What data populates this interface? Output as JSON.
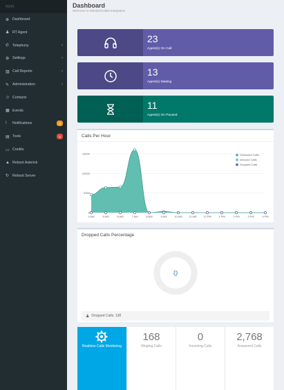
{
  "sidebar": {
    "header_label": "MAIN",
    "items": [
      {
        "icon": "dashboard-icon",
        "label": "Dashboard",
        "glyph": "⊕",
        "caret": false
      },
      {
        "icon": "user-icon",
        "label": "RT Agent",
        "glyph": "♟",
        "caret": false
      },
      {
        "icon": "phone-icon",
        "label": "Telephony",
        "glyph": "✆",
        "caret": true
      },
      {
        "icon": "gear-icon",
        "label": "Settings",
        "glyph": "⚙",
        "caret": true
      },
      {
        "icon": "bar-chart-icon",
        "label": "Call Reports",
        "glyph": "▥",
        "caret": true
      },
      {
        "icon": "wrench-icon",
        "label": "Administration",
        "glyph": "✎",
        "caret": true
      },
      {
        "icon": "contacts-icon",
        "label": "Contacts",
        "glyph": "☺",
        "caret": false
      },
      {
        "icon": "calendar-icon",
        "label": "Events",
        "glyph": "▦",
        "caret": false
      },
      {
        "icon": "exclamation-icon",
        "label": "Notifications",
        "glyph": "!",
        "caret": false,
        "badge": "0",
        "badge_color": "#f39c12"
      },
      {
        "icon": "tools-icon",
        "label": "Tools",
        "glyph": "▤",
        "caret": false,
        "badge": "0",
        "badge_color": "#dd4b39"
      },
      {
        "icon": "credit-card-icon",
        "label": "Credits",
        "glyph": "▭",
        "caret": false
      },
      {
        "icon": "warning-icon",
        "label": "Reboot Asterisk",
        "glyph": "▲",
        "caret": false
      },
      {
        "icon": "refresh-icon",
        "label": "Reboot Server",
        "glyph": "↻",
        "caret": false
      }
    ]
  },
  "header": {
    "title": "Dashboard",
    "subtitle": "Welcome to Elastix/Vicidial Integration"
  },
  "info_boxes": [
    {
      "icon": "headphones-icon",
      "number": "23",
      "label": "Agent(s) On Call",
      "color": "#605ca8"
    },
    {
      "icon": "clock-icon",
      "number": "13",
      "label": "Agent(s) Waiting",
      "color": "#605ca8"
    },
    {
      "icon": "hourglass-icon",
      "number": "11",
      "label": "Agent(s) On Paused",
      "color": "#00786a"
    }
  ],
  "calls_per_hour": {
    "title": "Calls Per Hour",
    "legend": [
      {
        "name": "Outbound Calls",
        "color": "#48b3a4"
      },
      {
        "name": "Inbound Calls",
        "color": "#5bc0de"
      },
      {
        "name": "Dropped Calls",
        "color": "#605ca8"
      }
    ]
  },
  "chart_data": {
    "type": "area",
    "x": [
      "4 AM",
      "5 AM",
      "6 AM",
      "7 AM",
      "8 AM",
      "9 AM",
      "10 AM",
      "11 AM",
      "12 PM",
      "1 PM",
      "2 PM",
      "3 PM",
      "4 PM"
    ],
    "ylim": [
      0,
      15000
    ],
    "yticks": [
      "15000",
      "10000",
      "5000",
      "0"
    ],
    "series": [
      {
        "name": "Outbound Calls",
        "values": [
          4600,
          6400,
          6500,
          16000,
          0,
          300,
          0,
          0,
          0,
          0,
          0,
          0,
          0
        ]
      },
      {
        "name": "Inbound Calls",
        "values": [
          0,
          0,
          0,
          0,
          0,
          0,
          0,
          0,
          0,
          0,
          0,
          0,
          0
        ]
      },
      {
        "name": "Dropped Calls",
        "values": [
          0,
          0,
          0,
          0,
          0,
          0,
          0,
          0,
          0,
          0,
          0,
          0,
          0
        ]
      }
    ]
  },
  "dropped": {
    "title": "Dropped Calls Percentage",
    "value": "0",
    "footer": "Dropped Calls: 138"
  },
  "stats": {
    "realtime_label": "Realtime Calls Monitoring",
    "items": [
      {
        "value": "168",
        "label": "Ringing Calls"
      },
      {
        "value": "0",
        "label": "Incoming Calls"
      },
      {
        "value": "2,768",
        "label": "Answered Calls"
      }
    ]
  }
}
